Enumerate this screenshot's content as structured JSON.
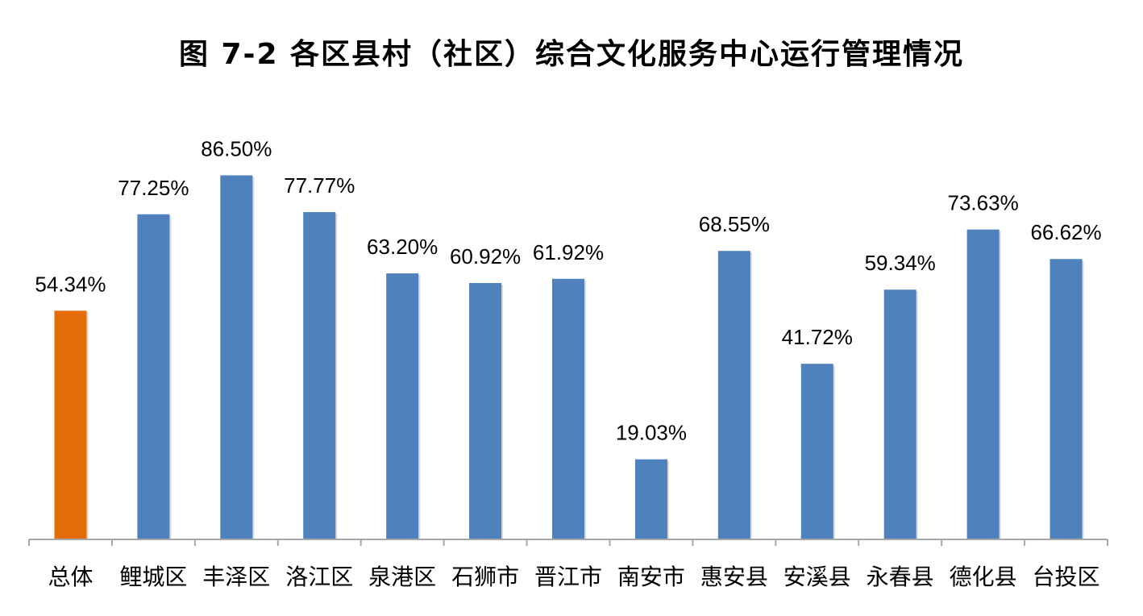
{
  "chart_data": {
    "type": "bar",
    "title": "图 7-2 各区县村（社区）综合文化服务中心运行管理情况",
    "xlabel": "",
    "ylabel": "",
    "categories": [
      "总体",
      "鲤城区",
      "丰泽区",
      "洛江区",
      "泉港区",
      "石狮市",
      "晋江市",
      "南安市",
      "惠安县",
      "安溪县",
      "永春县",
      "德化县",
      "台投区"
    ],
    "values": [
      54.34,
      77.25,
      86.5,
      77.77,
      63.2,
      60.92,
      61.92,
      19.03,
      68.55,
      41.72,
      59.34,
      73.63,
      66.62
    ],
    "value_labels": [
      "54.34%",
      "77.25%",
      "86.50%",
      "77.77%",
      "63.20%",
      "60.92%",
      "61.92%",
      "19.03%",
      "68.55%",
      "41.72%",
      "59.34%",
      "73.63%",
      "66.62%"
    ],
    "ylim": [
      0,
      100
    ],
    "grid": false,
    "legend": "none",
    "colors": {
      "highlight": "#E46C0A",
      "default": "#4F81BD",
      "axis": "#A6A6A6"
    },
    "highlight_index": 0
  }
}
